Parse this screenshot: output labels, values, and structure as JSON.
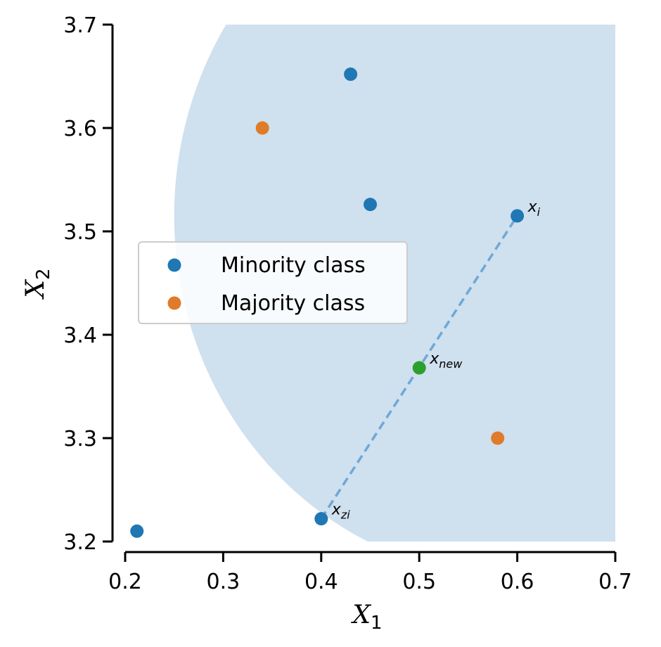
{
  "chart_data": {
    "type": "scatter",
    "xlim": [
      0.2,
      0.7
    ],
    "ylim": [
      3.2,
      3.7
    ],
    "xticks": [
      "0.2",
      "0.3",
      "0.4",
      "0.5",
      "0.6",
      "0.7"
    ],
    "yticks": [
      "3.2",
      "3.3",
      "3.4",
      "3.5",
      "3.6",
      "3.7"
    ],
    "xlabel": {
      "main": "X",
      "sub": "1"
    },
    "ylabel": {
      "main": "X",
      "sub": "2"
    },
    "grid": false,
    "legend_position": "center-left",
    "neighborhood_region": {
      "shape": "circle",
      "center": [
        0.6,
        3.515
      ],
      "radius": 0.35,
      "color": "#cfe0ef"
    },
    "series": [
      {
        "name": "Minority class",
        "color": "#1f77b4",
        "points": [
          [
            0.43,
            3.652
          ],
          [
            0.45,
            3.526
          ],
          [
            0.6,
            3.515
          ],
          [
            0.4,
            3.222
          ],
          [
            0.212,
            3.21
          ]
        ]
      },
      {
        "name": "Majority class",
        "color": "#e07b29",
        "points": [
          [
            0.34,
            3.6
          ],
          [
            0.58,
            3.3
          ]
        ]
      }
    ],
    "synthetic_point": {
      "x": 0.5,
      "y": 3.368,
      "color": "#2ca02c"
    },
    "interpolation_line": {
      "from": [
        0.4,
        3.222
      ],
      "to": [
        0.6,
        3.515
      ],
      "color": "#6fa8d6",
      "style": "dashed"
    },
    "annotations": [
      {
        "main": "x",
        "sub": "i",
        "x": 0.6,
        "y": 3.515
      },
      {
        "main": "x",
        "sub": "new",
        "x": 0.5,
        "y": 3.368
      },
      {
        "main": "x",
        "sub": "zi",
        "x": 0.4,
        "y": 3.222
      }
    ]
  }
}
